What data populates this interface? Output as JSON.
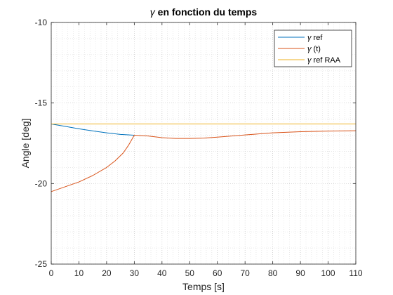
{
  "chart_data": {
    "type": "line",
    "title": "γ en fonction du temps",
    "title_symbol": "γ",
    "title_rest": " en fonction du temps",
    "xlabel": "Temps [s]",
    "ylabel": "Angle [deg]",
    "xlim": [
      0,
      110
    ],
    "ylim": [
      -25,
      -10
    ],
    "xticks": [
      0,
      10,
      20,
      30,
      40,
      50,
      60,
      70,
      80,
      90,
      100,
      110
    ],
    "yticks": [
      -25,
      -20,
      -15,
      -10
    ],
    "xtick_labels": [
      "0",
      "10",
      "20",
      "30",
      "40",
      "50",
      "60",
      "70",
      "80",
      "90",
      "100",
      "110"
    ],
    "ytick_labels": [
      "-25",
      "-20",
      "-15",
      "-10"
    ],
    "grid": "major and minor, dotted",
    "legend_position": "top-right",
    "series": [
      {
        "name": "γ ref",
        "legend_symbol": "γ",
        "legend_rest": " ref",
        "color": "#0072BD",
        "x": [
          0,
          5,
          10,
          15,
          20,
          25,
          30
        ],
        "y": [
          -16.3,
          -16.45,
          -16.6,
          -16.73,
          -16.85,
          -16.95,
          -17.0
        ]
      },
      {
        "name": "γ (t)",
        "legend_symbol": "γ",
        "legend_rest": " (t)",
        "color": "#D95319",
        "x": [
          0,
          5,
          10,
          15,
          20,
          23,
          26,
          28,
          29,
          30,
          35,
          40,
          45,
          50,
          55,
          60,
          70,
          80,
          90,
          100,
          110
        ],
        "y": [
          -20.5,
          -20.2,
          -19.9,
          -19.5,
          -19.0,
          -18.6,
          -18.1,
          -17.6,
          -17.3,
          -17.0,
          -17.05,
          -17.15,
          -17.2,
          -17.2,
          -17.18,
          -17.12,
          -16.98,
          -16.85,
          -16.78,
          -16.74,
          -16.72
        ]
      },
      {
        "name": "γ ref RAA",
        "legend_symbol": "γ",
        "legend_rest": " ref RAA",
        "color": "#EDB120",
        "x": [
          0,
          110
        ],
        "y": [
          -16.3,
          -16.3
        ]
      }
    ]
  }
}
